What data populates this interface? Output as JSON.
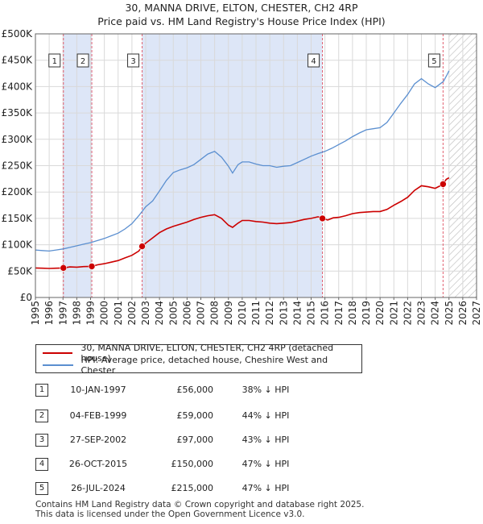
{
  "title_line1": "30, MANNA DRIVE, ELTON, CHESTER, CH2 4RP",
  "title_line2": "Price paid vs. HM Land Registry's House Price Index (HPI)",
  "colors": {
    "property": "#cc0000",
    "hpi": "#5b8fd0",
    "shade": "#dde6f7",
    "marker_line": "#e06070"
  },
  "chart_data": {
    "type": "line",
    "xlim": [
      1995,
      2027
    ],
    "ylim": [
      0,
      500000
    ],
    "x_ticks": [
      1995,
      1996,
      1997,
      1998,
      1999,
      2000,
      2001,
      2002,
      2003,
      2004,
      2005,
      2006,
      2007,
      2008,
      2009,
      2010,
      2011,
      2012,
      2013,
      2014,
      2015,
      2016,
      2017,
      2018,
      2019,
      2020,
      2021,
      2022,
      2023,
      2024,
      2025,
      2026,
      2027
    ],
    "y_ticks": [
      0,
      50000,
      100000,
      150000,
      200000,
      250000,
      300000,
      350000,
      400000,
      450000,
      500000
    ],
    "y_tick_labels": [
      "£0",
      "£50K",
      "£100K",
      "£150K",
      "£200K",
      "£250K",
      "£300K",
      "£350K",
      "£400K",
      "£450K",
      "£500K"
    ],
    "shaded_ranges": [
      [
        1997.03,
        1999.09
      ],
      [
        2002.74,
        2015.82
      ]
    ],
    "future_hatch_from": 2025.0,
    "series": [
      {
        "name": "30, MANNA DRIVE, ELTON, CHESTER, CH2 4RP (detached house)",
        "points": [
          [
            1995.0,
            56000
          ],
          [
            1995.5,
            55500
          ],
          [
            1996.0,
            55000
          ],
          [
            1996.5,
            55500
          ],
          [
            1997.03,
            56000
          ],
          [
            1997.5,
            58000
          ],
          [
            1998.0,
            57500
          ],
          [
            1998.5,
            58500
          ],
          [
            1999.09,
            59000
          ],
          [
            1999.5,
            62000
          ],
          [
            2000.0,
            64000
          ],
          [
            2000.5,
            67000
          ],
          [
            2001.0,
            70000
          ],
          [
            2001.5,
            75000
          ],
          [
            2002.0,
            80000
          ],
          [
            2002.5,
            88000
          ],
          [
            2002.74,
            97000
          ],
          [
            2003.0,
            103000
          ],
          [
            2003.5,
            113000
          ],
          [
            2004.0,
            123000
          ],
          [
            2004.5,
            130000
          ],
          [
            2005.0,
            135000
          ],
          [
            2005.5,
            139000
          ],
          [
            2006.0,
            143000
          ],
          [
            2006.5,
            148000
          ],
          [
            2007.0,
            152000
          ],
          [
            2007.5,
            155000
          ],
          [
            2008.0,
            157000
          ],
          [
            2008.5,
            150000
          ],
          [
            2009.0,
            137000
          ],
          [
            2009.3,
            133000
          ],
          [
            2009.7,
            141000
          ],
          [
            2010.0,
            146000
          ],
          [
            2010.5,
            146000
          ],
          [
            2011.0,
            144000
          ],
          [
            2011.5,
            143000
          ],
          [
            2012.0,
            141000
          ],
          [
            2012.5,
            140000
          ],
          [
            2013.0,
            141000
          ],
          [
            2013.5,
            142000
          ],
          [
            2014.0,
            145000
          ],
          [
            2014.5,
            148000
          ],
          [
            2015.0,
            150000
          ],
          [
            2015.5,
            153000
          ],
          [
            2015.82,
            150000
          ],
          [
            2016.2,
            147000
          ],
          [
            2016.6,
            151000
          ],
          [
            2017.0,
            152000
          ],
          [
            2017.5,
            155000
          ],
          [
            2018.0,
            159000
          ],
          [
            2018.5,
            161000
          ],
          [
            2019.0,
            162000
          ],
          [
            2019.5,
            163000
          ],
          [
            2020.0,
            163000
          ],
          [
            2020.5,
            167000
          ],
          [
            2021.0,
            175000
          ],
          [
            2021.5,
            182000
          ],
          [
            2022.0,
            190000
          ],
          [
            2022.5,
            203000
          ],
          [
            2023.0,
            212000
          ],
          [
            2023.5,
            210000
          ],
          [
            2024.0,
            207000
          ],
          [
            2024.3,
            211000
          ],
          [
            2024.57,
            215000
          ],
          [
            2024.8,
            224000
          ],
          [
            2025.0,
            227000
          ]
        ]
      },
      {
        "name": "HPI: Average price, detached house, Cheshire West and Chester",
        "points": [
          [
            1995.0,
            90000
          ],
          [
            1995.5,
            89000
          ],
          [
            1996.0,
            88000
          ],
          [
            1996.5,
            90000
          ],
          [
            1997.0,
            92000
          ],
          [
            1997.5,
            95000
          ],
          [
            1998.0,
            98000
          ],
          [
            1998.5,
            101000
          ],
          [
            1999.0,
            104000
          ],
          [
            1999.5,
            108000
          ],
          [
            2000.0,
            112000
          ],
          [
            2000.5,
            117000
          ],
          [
            2001.0,
            122000
          ],
          [
            2001.5,
            130000
          ],
          [
            2002.0,
            140000
          ],
          [
            2002.5,
            155000
          ],
          [
            2003.0,
            172000
          ],
          [
            2003.5,
            183000
          ],
          [
            2004.0,
            202000
          ],
          [
            2004.5,
            222000
          ],
          [
            2005.0,
            237000
          ],
          [
            2005.5,
            242000
          ],
          [
            2006.0,
            246000
          ],
          [
            2006.5,
            252000
          ],
          [
            2007.0,
            262000
          ],
          [
            2007.5,
            272000
          ],
          [
            2008.0,
            277000
          ],
          [
            2008.5,
            266000
          ],
          [
            2009.0,
            249000
          ],
          [
            2009.3,
            236000
          ],
          [
            2009.7,
            252000
          ],
          [
            2010.0,
            257000
          ],
          [
            2010.5,
            257000
          ],
          [
            2011.0,
            253000
          ],
          [
            2011.5,
            250000
          ],
          [
            2012.0,
            250000
          ],
          [
            2012.5,
            247000
          ],
          [
            2013.0,
            249000
          ],
          [
            2013.5,
            250000
          ],
          [
            2014.0,
            256000
          ],
          [
            2014.5,
            262000
          ],
          [
            2015.0,
            268000
          ],
          [
            2015.5,
            273000
          ],
          [
            2016.0,
            277000
          ],
          [
            2016.5,
            283000
          ],
          [
            2017.0,
            290000
          ],
          [
            2017.5,
            297000
          ],
          [
            2018.0,
            305000
          ],
          [
            2018.5,
            312000
          ],
          [
            2019.0,
            318000
          ],
          [
            2019.5,
            320000
          ],
          [
            2020.0,
            322000
          ],
          [
            2020.5,
            332000
          ],
          [
            2021.0,
            350000
          ],
          [
            2021.5,
            368000
          ],
          [
            2022.0,
            385000
          ],
          [
            2022.5,
            405000
          ],
          [
            2023.0,
            415000
          ],
          [
            2023.5,
            405000
          ],
          [
            2024.0,
            398000
          ],
          [
            2024.3,
            404000
          ],
          [
            2024.6,
            410000
          ],
          [
            2024.85,
            422000
          ],
          [
            2025.0,
            430000
          ]
        ]
      }
    ],
    "sales": [
      {
        "n": "1",
        "date": "10-JAN-1997",
        "x": 1997.03,
        "price": 56000,
        "price_text": "£56,000",
        "hpi_text": "38% ↓ HPI"
      },
      {
        "n": "2",
        "date": "04-FEB-1999",
        "x": 1999.09,
        "price": 59000,
        "price_text": "£59,000",
        "hpi_text": "44% ↓ HPI"
      },
      {
        "n": "3",
        "date": "27-SEP-2002",
        "x": 2002.74,
        "price": 97000,
        "price_text": "£97,000",
        "hpi_text": "43% ↓ HPI"
      },
      {
        "n": "4",
        "date": "26-OCT-2015",
        "x": 2015.82,
        "price": 150000,
        "price_text": "£150,000",
        "hpi_text": "47% ↓ HPI"
      },
      {
        "n": "5",
        "date": "26-JUL-2024",
        "x": 2024.57,
        "price": 215000,
        "price_text": "£215,000",
        "hpi_text": "47% ↓ HPI"
      }
    ]
  },
  "legend": {
    "property_label": "30, MANNA DRIVE, ELTON, CHESTER, CH2 4RP (detached house)",
    "hpi_label": "HPI: Average price, detached house, Cheshire West and Chester"
  },
  "footer": {
    "line1": "Contains HM Land Registry data © Crown copyright and database right 2025.",
    "line2": "This data is licensed under the Open Government Licence v3.0."
  }
}
